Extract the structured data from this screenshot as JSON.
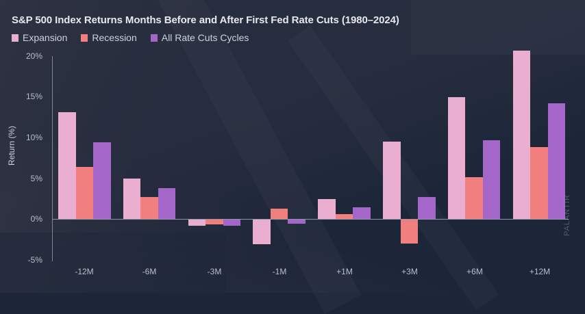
{
  "chart_data": {
    "type": "bar",
    "title": "S&P 500 Index Returns Months Before and After First Fed Rate Cuts (1980–2024)",
    "xlabel": "",
    "ylabel": "Return (%)",
    "ylim": [
      -5,
      20
    ],
    "yticks": [
      "-5%",
      "0%",
      "5%",
      "10%",
      "15%",
      "20%"
    ],
    "grid": false,
    "legend_position": "top-left",
    "categories": [
      "-12M",
      "-6M",
      "-3M",
      "-1M",
      "+1M",
      "+3M",
      "+6M",
      "+12M"
    ],
    "series": [
      {
        "name": "Expansion",
        "color": "#eaaed0",
        "values": [
          13.1,
          5.0,
          -0.8,
          -3.1,
          2.4,
          9.5,
          15.0,
          20.7
        ]
      },
      {
        "name": "Recession",
        "color": "#f07f7e",
        "values": [
          6.4,
          2.7,
          -0.7,
          1.3,
          0.6,
          -3.0,
          5.1,
          8.8
        ]
      },
      {
        "name": "All Rate Cuts Cycles",
        "color": "#a466c8",
        "values": [
          9.4,
          3.8,
          -0.8,
          -0.6,
          1.4,
          2.7,
          9.7,
          14.2
        ]
      }
    ]
  },
  "watermark": "PALANTIR"
}
